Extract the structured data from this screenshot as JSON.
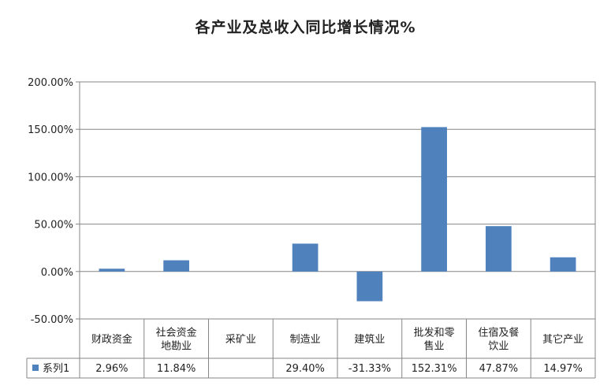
{
  "chart_data": {
    "type": "bar",
    "title": "各产业及总收入同比增长情况%",
    "categories": [
      [
        "财政资金"
      ],
      [
        "社会资金",
        "地勘业"
      ],
      [
        "采矿业"
      ],
      [
        "制造业"
      ],
      [
        "建筑业"
      ],
      [
        "批发和零",
        "售业"
      ],
      [
        "住宿及餐",
        "饮业"
      ],
      [
        "其它产业"
      ]
    ],
    "series": [
      {
        "name": "系列1",
        "values": [
          2.96,
          11.84,
          null,
          29.4,
          -31.33,
          152.31,
          47.87,
          14.97
        ],
        "labels": [
          "2.96%",
          "11.84%",
          "",
          "29.40%",
          "-31.33%",
          "152.31%",
          "47.87%",
          "14.97%"
        ],
        "color": "#4F81BD"
      }
    ],
    "yticks": [
      {
        "value": 200,
        "label": "200.00%"
      },
      {
        "value": 150,
        "label": "150.00%"
      },
      {
        "value": 100,
        "label": "100.00%"
      },
      {
        "value": 50,
        "label": "50.00%"
      },
      {
        "value": 0,
        "label": "0.00%"
      },
      {
        "value": -50,
        "label": "-50.00%"
      }
    ],
    "ylim": [
      -50,
      200
    ],
    "grid": true,
    "legend": "data-table"
  }
}
